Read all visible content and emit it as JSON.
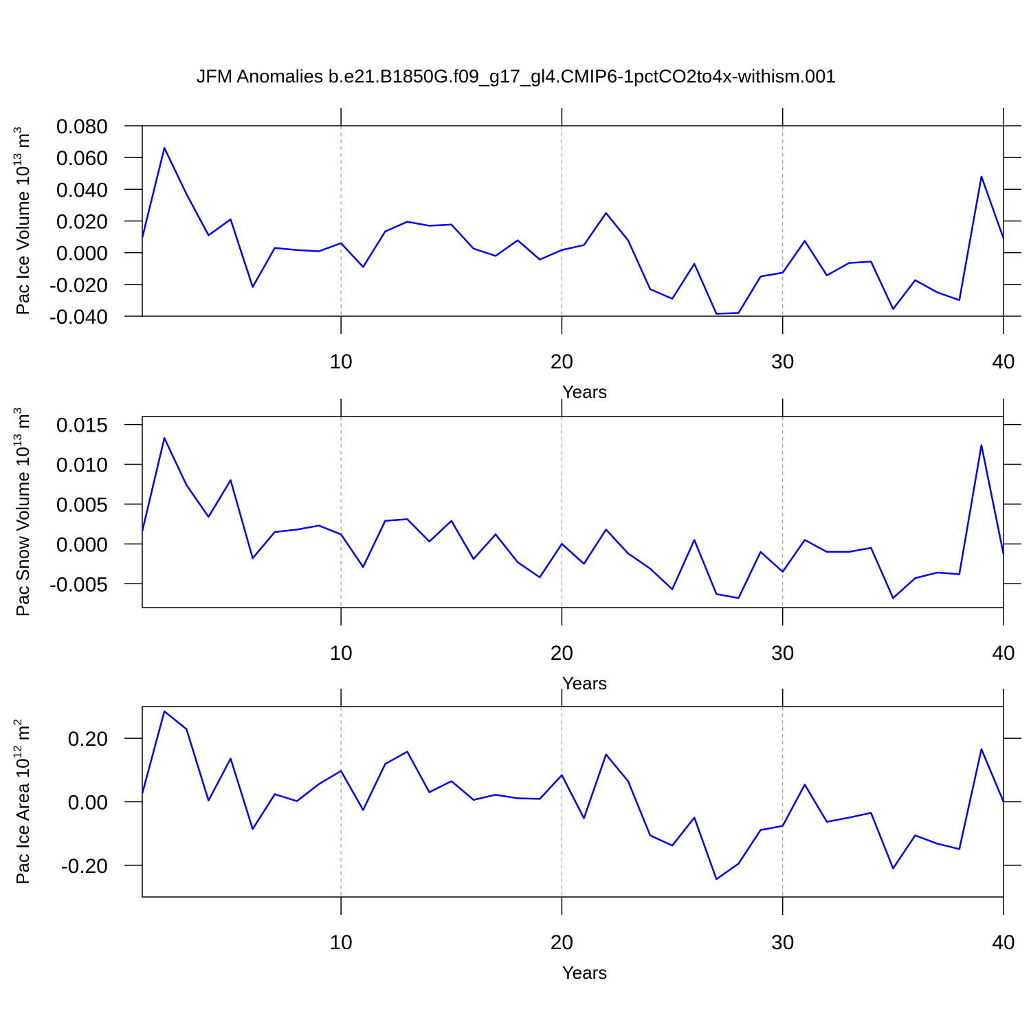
{
  "title": "JFM Anomalies b.e21.B1850G.f09_g17_gl4.CMIP6-1pctCO2to4x-withism.001",
  "chart_data": [
    {
      "type": "line",
      "xlabel": "Years",
      "ylabel": [
        {
          "text": "Pac Ice Volume 10"
        },
        {
          "text": "13",
          "sup": true
        },
        {
          "text": " m"
        },
        {
          "text": "3",
          "sup": true
        }
      ],
      "x": [
        1,
        2,
        3,
        4,
        5,
        6,
        7,
        8,
        9,
        10,
        11,
        12,
        13,
        14,
        15,
        16,
        17,
        18,
        19,
        20,
        21,
        22,
        23,
        24,
        25,
        26,
        27,
        28,
        29,
        30,
        31,
        32,
        33,
        34,
        35,
        36,
        37,
        38,
        39,
        40
      ],
      "xlim": [
        1,
        40
      ],
      "xticks": [
        10,
        20,
        30,
        40
      ],
      "grid": true,
      "ylim": [
        -0.04,
        0.08
      ],
      "yticks": [
        {
          "value": 0.08,
          "label": "0.080"
        },
        {
          "value": 0.06,
          "label": "0.060"
        },
        {
          "value": 0.04,
          "label": "0.040"
        },
        {
          "value": 0.02,
          "label": "0.020"
        },
        {
          "value": 0,
          "label": "0.000"
        },
        {
          "value": -0.02,
          "label": "-0.020"
        },
        {
          "value": -0.04,
          "label": "-0.040"
        }
      ],
      "series": [
        {
          "color": "#0000ff",
          "values": [
            0.0095,
            0.066,
            0.037,
            0.011,
            0.021,
            -0.0216,
            0.003,
            0.0017,
            0.0009,
            0.006,
            -0.009,
            0.0134,
            0.0195,
            0.017,
            0.0177,
            0.0026,
            -0.002,
            0.0078,
            -0.0043,
            0.0017,
            0.0048,
            0.025,
            0.0078,
            -0.023,
            -0.029,
            -0.007,
            -0.0385,
            -0.038,
            -0.015,
            -0.0126,
            0.0074,
            -0.0143,
            -0.0065,
            -0.0056,
            -0.0355,
            -0.0173,
            -0.025,
            -0.0299,
            0.048,
            0.009
          ]
        }
      ]
    },
    {
      "type": "line",
      "xlabel": "Years",
      "ylabel": [
        {
          "text": "Pac Snow Volume 10"
        },
        {
          "text": "13",
          "sup": true
        },
        {
          "text": " m"
        },
        {
          "text": "3",
          "sup": true
        }
      ],
      "x": [
        1,
        2,
        3,
        4,
        5,
        6,
        7,
        8,
        9,
        10,
        11,
        12,
        13,
        14,
        15,
        16,
        17,
        18,
        19,
        20,
        21,
        22,
        23,
        24,
        25,
        26,
        27,
        28,
        29,
        30,
        31,
        32,
        33,
        34,
        35,
        36,
        37,
        38,
        39,
        40
      ],
      "xlim": [
        1,
        40
      ],
      "xticks": [
        10,
        20,
        30,
        40
      ],
      "grid": true,
      "ylim": [
        -0.008,
        0.016
      ],
      "yticks": [
        {
          "value": 0.015,
          "label": "0.015"
        },
        {
          "value": 0.01,
          "label": "0.010"
        },
        {
          "value": 0.005,
          "label": "0.005"
        },
        {
          "value": 0,
          "label": "0.000"
        },
        {
          "value": -0.005,
          "label": "-0.005"
        }
      ],
      "series": [
        {
          "color": "#0000ff",
          "values": [
            0.0016,
            0.0133,
            0.0074,
            0.0034,
            0.008,
            -0.0018,
            0.0015,
            0.0018,
            0.0023,
            0.0012,
            -0.0029,
            0.0029,
            0.0031,
            0.0003,
            0.0029,
            -0.0019,
            0.0012,
            -0.0023,
            -0.0042,
            0,
            -0.0025,
            0.0018,
            -0.0012,
            -0.0031,
            -0.0057,
            0.0005,
            -0.0063,
            -0.0068,
            -0.001,
            -0.0035,
            0.0005,
            -0.001,
            -0.001,
            -0.0005,
            -0.0068,
            -0.0043,
            -0.0036,
            -0.0038,
            0.0124,
            -0.0013
          ]
        }
      ]
    },
    {
      "type": "line",
      "xlabel": "Years",
      "ylabel": [
        {
          "text": "Pac Ice Area 10"
        },
        {
          "text": "12",
          "sup": true
        },
        {
          "text": " m"
        },
        {
          "text": "2",
          "sup": true
        }
      ],
      "x": [
        1,
        2,
        3,
        4,
        5,
        6,
        7,
        8,
        9,
        10,
        11,
        12,
        13,
        14,
        15,
        16,
        17,
        18,
        19,
        20,
        21,
        22,
        23,
        24,
        25,
        26,
        27,
        28,
        29,
        30,
        31,
        32,
        33,
        34,
        35,
        36,
        37,
        38,
        39,
        40
      ],
      "xlim": [
        1,
        40
      ],
      "xticks": [
        10,
        20,
        30,
        40
      ],
      "grid": true,
      "ylim": [
        -0.3,
        0.3
      ],
      "yticks": [
        {
          "value": 0.2,
          "label": "0.20"
        },
        {
          "value": 0,
          "label": "0.00"
        },
        {
          "value": -0.2,
          "label": "-0.20"
        }
      ],
      "series": [
        {
          "color": "#0000ff",
          "values": [
            0.026,
            0.285,
            0.229,
            0.004,
            0.136,
            -0.086,
            0.024,
            0.002,
            0.056,
            0.097,
            -0.026,
            0.119,
            0.158,
            0.03,
            0.065,
            0.006,
            0.022,
            0.011,
            0.009,
            0.084,
            -0.052,
            0.149,
            0.065,
            -0.106,
            -0.138,
            -0.05,
            -0.244,
            -0.195,
            -0.089,
            -0.076,
            0.054,
            -0.063,
            -0.05,
            -0.035,
            -0.21,
            -0.106,
            -0.132,
            -0.149,
            0.166,
            0
          ]
        }
      ]
    }
  ]
}
